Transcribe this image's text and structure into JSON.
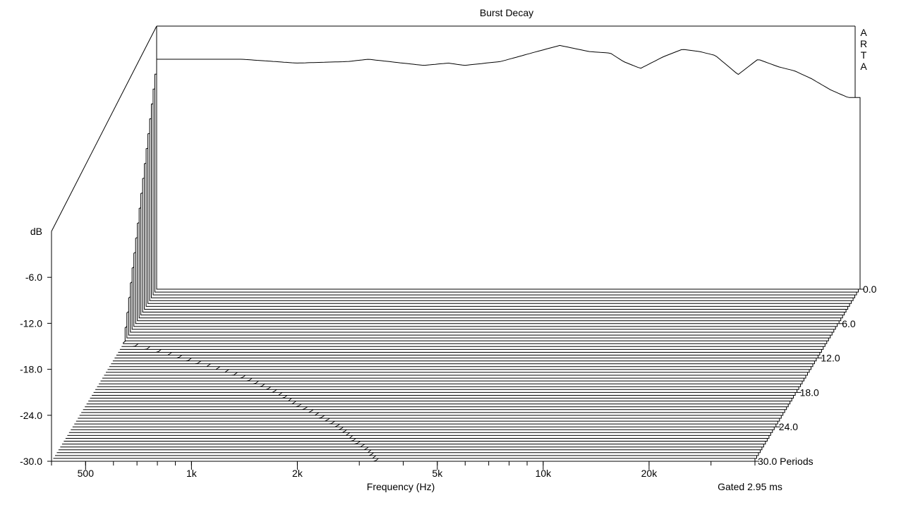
{
  "chart_data": {
    "type": "waterfall",
    "title": "Burst Decay",
    "watermark": "ARTA",
    "xlabel": "Frequency (Hz)",
    "zlabel": "dB",
    "depth_unit": "Periods",
    "gate_note": "Gated 2.95 ms",
    "x_scale": "log",
    "xlim": [
      400,
      40000
    ],
    "ylim": [
      -30,
      0
    ],
    "depth_range": [
      0,
      30
    ],
    "x_ticks": [
      {
        "value": 500,
        "label": "500"
      },
      {
        "value": 1000,
        "label": "1k"
      },
      {
        "value": 2000,
        "label": "2k"
      },
      {
        "value": 5000,
        "label": "5k"
      },
      {
        "value": 10000,
        "label": "10k"
      },
      {
        "value": 20000,
        "label": "20k"
      }
    ],
    "y_ticks": [
      {
        "value": -6,
        "label": "-6.0"
      },
      {
        "value": -12,
        "label": "-12.0"
      },
      {
        "value": -18,
        "label": "-18.0"
      },
      {
        "value": -24,
        "label": "-24.0"
      },
      {
        "value": -30,
        "label": "-30.0"
      }
    ],
    "depth_ticks": [
      {
        "value": 0,
        "label": "0.0"
      },
      {
        "value": 6,
        "label": "6.0"
      },
      {
        "value": 12,
        "label": "12.0"
      },
      {
        "value": 18,
        "label": "18.0"
      },
      {
        "value": 24,
        "label": "24.0"
      },
      {
        "value": 30,
        "label": "30.0 Periods"
      }
    ],
    "slice_count": 61,
    "initial_response": {
      "freq": [
        700,
        1000,
        1400,
        1600,
        2000,
        2300,
        2700,
        3000,
        3800,
        5000,
        5600,
        6800,
        7800,
        8500,
        9500,
        11000,
        12500,
        14000,
        15500,
        18000,
        20500,
        23500,
        26000,
        29000,
        33000,
        37000
      ],
      "db": [
        0,
        -0.5,
        -0.3,
        0,
        -0.5,
        -0.8,
        -0.5,
        -0.8,
        -0.3,
        1.2,
        1.8,
        1.0,
        0.8,
        -0.3,
        -1.2,
        0.3,
        1.3,
        1.0,
        0.5,
        -2.0,
        0,
        -1.0,
        -1.5,
        -2.5,
        -4.0,
        -5.0
      ]
    }
  }
}
